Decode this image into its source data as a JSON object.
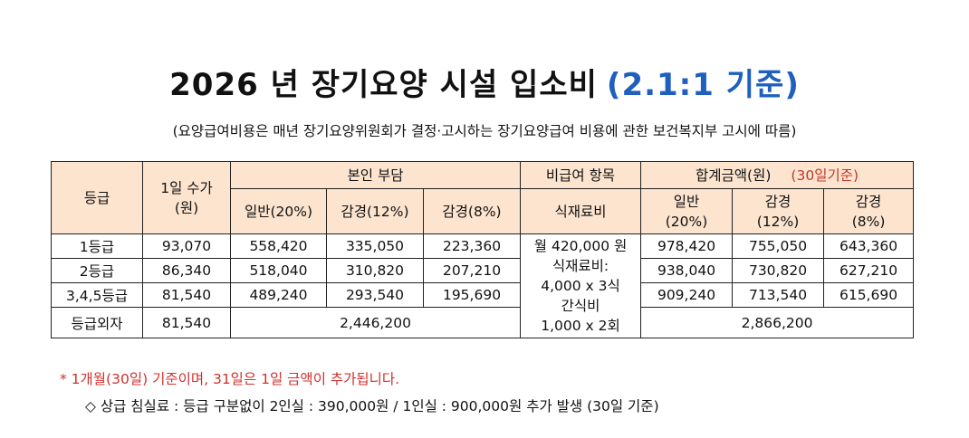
{
  "doc": {
    "title_main": "2026 년 장기요양 시설 입소비",
    "title_accent": "(2.1:1 기준)",
    "subtitle": "(요양급여비용은 매년 장기요양위원회가 결정·고시하는 장기요양급여 비용에 관한 보건복지부 고시에 따름)"
  },
  "table": {
    "header": {
      "grade": "등급",
      "daily_fee_line1": "1일 수가",
      "daily_fee_line2": "(원)",
      "self_pay": "본인 부담",
      "non_covered": "비급여 항목",
      "total": "합계금액(원)",
      "total_basis": "(30일기준)",
      "self_general": "일반(20%)",
      "self_reduced12": "감경(12%)",
      "self_reduced8": "감경(8%)",
      "meal": "식재료비",
      "total_general_line1": "일반",
      "total_general_line2": "(20%)",
      "total_reduced12_line1": "감경",
      "total_reduced12_line2": "(12%)",
      "total_reduced8_line1": "감경",
      "total_reduced8_line2": "(8%)"
    },
    "rows": [
      {
        "grade": "1등급",
        "daily": "93,070",
        "g20": "558,420",
        "r12": "335,050",
        "r8": "223,360",
        "t20": "978,420",
        "t12": "755,050",
        "t8": "643,360"
      },
      {
        "grade": "2등급",
        "daily": "86,340",
        "g20": "518,040",
        "r12": "310,820",
        "r8": "207,210",
        "t20": "938,040",
        "t12": "730,820",
        "t8": "627,210"
      },
      {
        "grade": "3,4,5등급",
        "daily": "81,540",
        "g20": "489,240",
        "r12": "293,540",
        "r8": "195,690",
        "t20": "909,240",
        "t12": "713,540",
        "t8": "615,690"
      }
    ],
    "outside": {
      "grade": "등급외자",
      "daily": "81,540",
      "self_total": "2,446,200",
      "total": "2,866,200"
    },
    "meal_note": {
      "line1": "월 420,000 원",
      "line2": "식재료비:",
      "line3": "4,000 x 3식",
      "line4": "간식비",
      "line5": "1,000 x 2회"
    }
  },
  "notes": {
    "note1": "* 1개월(30일) 기준이며, 31일은 1일 금액이 추가됩니다.",
    "note2": "◇ 상급 침실료 : 등급 구분없이 2인실 : 390,000원 / 1인실 : 900,000원 추가 발생 (30일 기준)"
  }
}
